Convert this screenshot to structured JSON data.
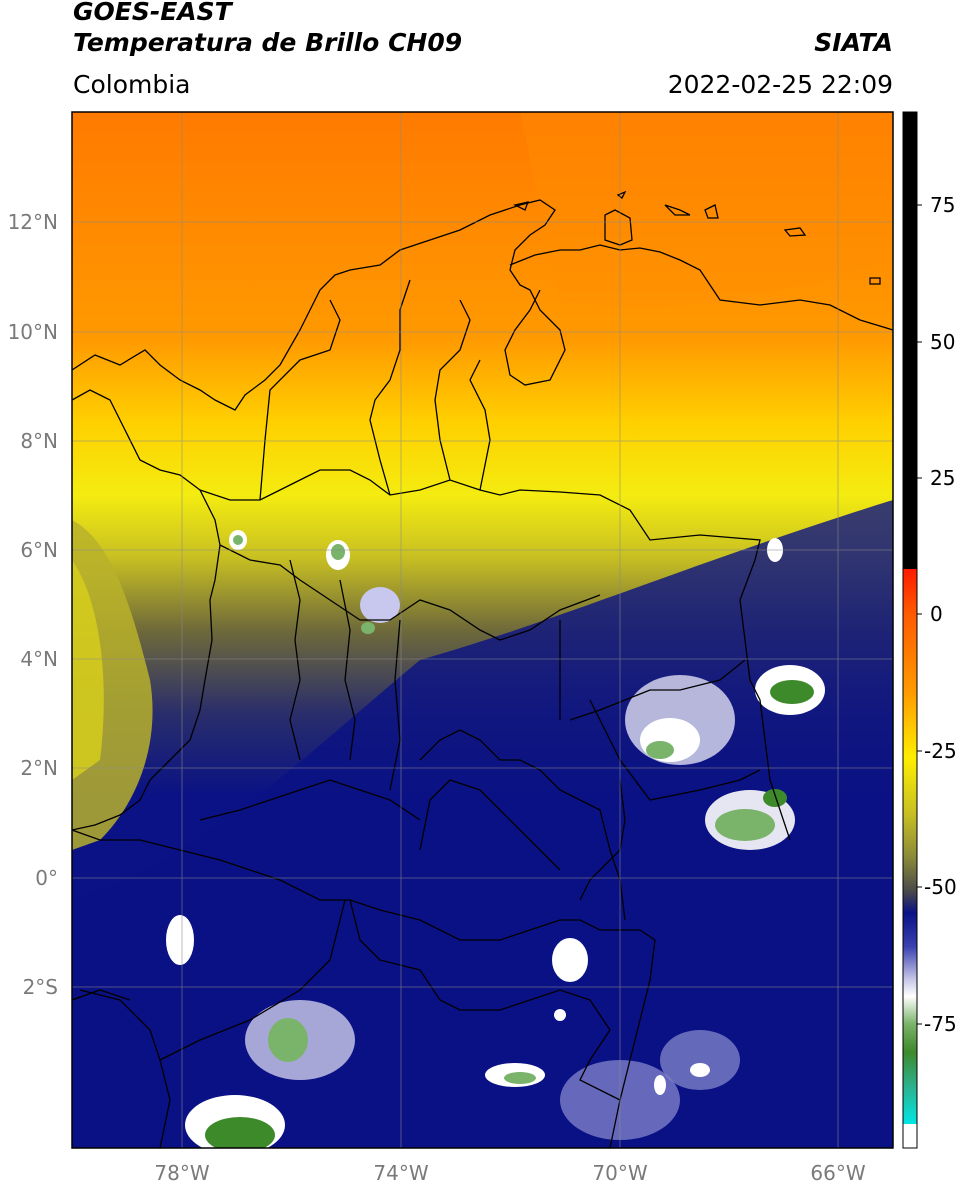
{
  "header": {
    "satellite": "GOES-EAST",
    "product": "Temperatura de Brillo CH09",
    "agency": "SIATA",
    "region": "Colombia",
    "datetime": "2022-02-25 22:09"
  },
  "map": {
    "lat_labels": [
      "12°N",
      "10°N",
      "8°N",
      "6°N",
      "4°N",
      "2°N",
      "0°",
      "2°S"
    ],
    "lon_labels": [
      "78°W",
      "74°W",
      "70°W",
      "66°W"
    ]
  },
  "colorbar": {
    "labels": [
      "75",
      "50",
      "25",
      "0",
      "-25",
      "-50",
      "-75"
    ],
    "colors": {
      "black": "#000000",
      "red": "#e8200a",
      "orange": "#ff8c00",
      "yellow": "#ffee00",
      "olive": "#8c8c33",
      "dark_gray": "#4a4a4a",
      "navy": "#0a1285",
      "white": "#ffffff",
      "green": "#3d8a2b",
      "cyan": "#1ee6dc"
    }
  }
}
